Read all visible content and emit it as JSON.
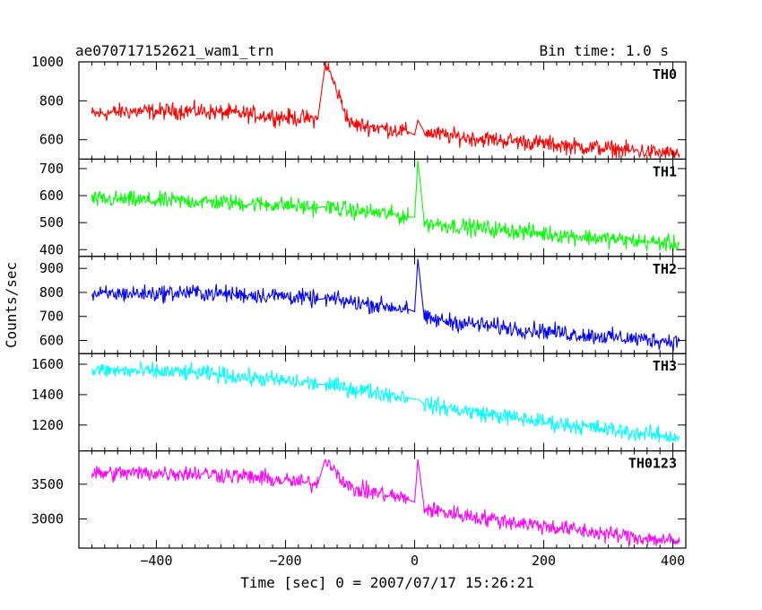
{
  "chart_data": {
    "type": "line",
    "title": "ae070717152621_wam1_trn",
    "subtitle": "Bin time: 1.0 s",
    "xlabel": "Time [sec] 0 = 2007/07/17 15:26:21",
    "ylabel": "Counts/sec",
    "xlim": [
      -520,
      420
    ],
    "x_ticks": [
      -400,
      -200,
      0,
      200,
      400
    ],
    "x": [
      -500,
      -450,
      -400,
      -350,
      -300,
      -250,
      -200,
      -150,
      -138,
      -100,
      -50,
      -10,
      0,
      5,
      15,
      50,
      100,
      150,
      200,
      250,
      300,
      350,
      410
    ],
    "panels": [
      {
        "name": "TH0",
        "color": "#ff0000",
        "ylim": [
          500,
          1000
        ],
        "y_ticks": [
          600,
          800,
          1000
        ],
        "values": [
          730,
          745,
          745,
          750,
          740,
          730,
          715,
          705,
          1000,
          680,
          660,
          640,
          625,
          700,
          640,
          620,
          605,
          595,
          580,
          565,
          555,
          540,
          525
        ]
      },
      {
        "name": "TH1",
        "color": "#00ff00",
        "ylim": [
          375,
          735
        ],
        "y_ticks": [
          400,
          500,
          600,
          700
        ],
        "values": [
          585,
          585,
          580,
          580,
          575,
          570,
          565,
          555,
          560,
          545,
          535,
          520,
          520,
          730,
          500,
          490,
          480,
          470,
          460,
          450,
          440,
          430,
          420
        ]
      },
      {
        "name": "TH2",
        "color": "#0000ff",
        "ylim": [
          545,
          950
        ],
        "y_ticks": [
          600,
          700,
          800,
          900
        ],
        "values": [
          790,
          795,
          795,
          800,
          795,
          790,
          785,
          770,
          775,
          760,
          745,
          730,
          720,
          940,
          690,
          680,
          665,
          650,
          640,
          625,
          615,
          605,
          595
        ]
      },
      {
        "name": "TH3",
        "color": "#00ffff",
        "ylim": [
          1030,
          1670
        ],
        "y_ticks": [
          1200,
          1400,
          1600
        ],
        "values": [
          1560,
          1555,
          1550,
          1545,
          1530,
          1510,
          1490,
          1470,
          1465,
          1440,
          1410,
          1380,
          1370,
          1370,
          1340,
          1310,
          1280,
          1250,
          1220,
          1195,
          1170,
          1145,
          1120
        ]
      },
      {
        "name": "TH0123",
        "color": "#ff00ff",
        "ylim": [
          2580,
          3980
        ],
        "y_ticks": [
          3000,
          3500
        ],
        "values": [
          3650,
          3660,
          3660,
          3660,
          3640,
          3600,
          3550,
          3500,
          3880,
          3440,
          3360,
          3280,
          3240,
          3860,
          3150,
          3090,
          3020,
          2960,
          2900,
          2840,
          2780,
          2730,
          2670
        ]
      }
    ]
  }
}
